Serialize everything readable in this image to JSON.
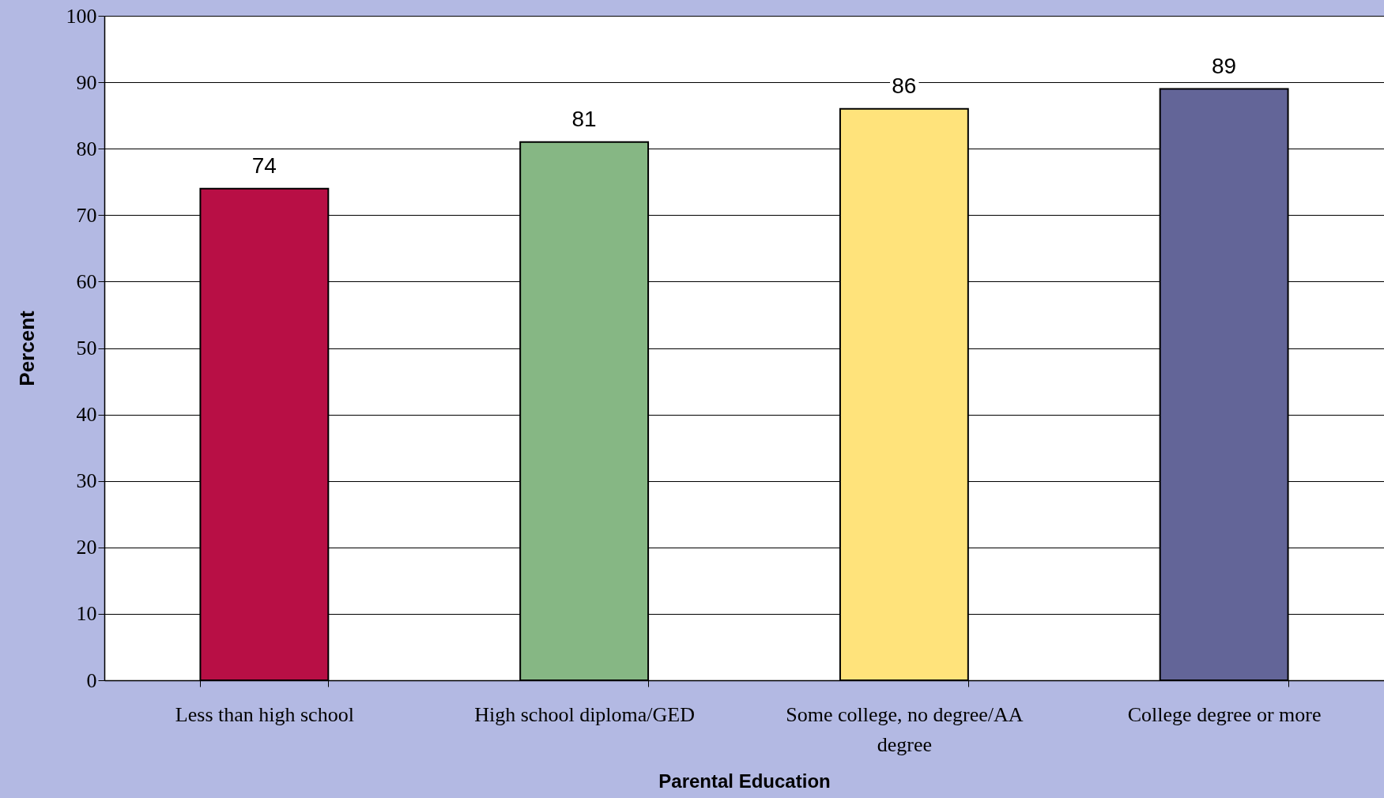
{
  "chart_data": {
    "type": "bar",
    "xlabel": "Parental Education",
    "ylabel": "Percent",
    "categories": [
      "Less than high school",
      "High school diploma/GED",
      "Some college, no degree/AA degree",
      "College degree or more"
    ],
    "values": [
      74,
      81,
      86,
      89
    ],
    "colors": [
      "#b80f45",
      "#86b784",
      "#ffe37b",
      "#636598"
    ],
    "ylim": [
      0,
      100
    ],
    "yticks": [
      0,
      10,
      20,
      30,
      40,
      50,
      60,
      70,
      80,
      90,
      100
    ],
    "grid": "y",
    "data_labels": true
  }
}
